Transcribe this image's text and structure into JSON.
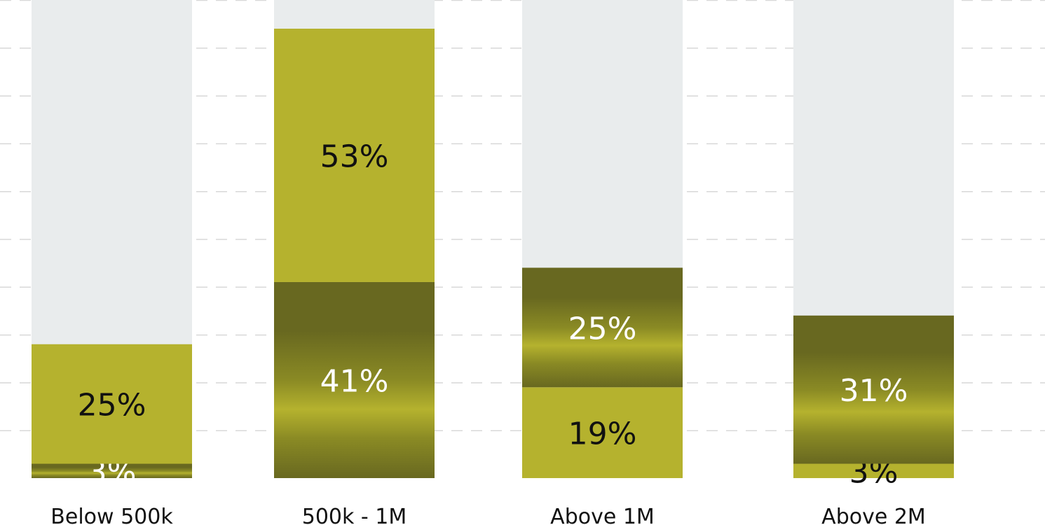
{
  "chart_data": {
    "type": "bar",
    "stacked": true,
    "categories": [
      "Below 500k",
      "500k - 1M",
      "Above 1M",
      "Above 2M"
    ],
    "ylim": [
      0,
      100
    ],
    "grid": true,
    "bars": [
      {
        "segments": [
          {
            "value": 3,
            "label": "3%",
            "style": "dark"
          },
          {
            "value": 25,
            "label": "25%",
            "style": "light"
          }
        ]
      },
      {
        "segments": [
          {
            "value": 41,
            "label": "41%",
            "style": "dark"
          },
          {
            "value": 53,
            "label": "53%",
            "style": "light"
          }
        ]
      },
      {
        "segments": [
          {
            "value": 19,
            "label": "19%",
            "style": "light"
          },
          {
            "value": 25,
            "label": "25%",
            "style": "dark"
          }
        ]
      },
      {
        "segments": [
          {
            "value": 3,
            "label": "3%",
            "style": "light"
          },
          {
            "value": 31,
            "label": "31%",
            "style": "dark"
          }
        ]
      }
    ],
    "colors": {
      "light": "#b5b22e",
      "dark": "#686820",
      "track": "#e9eced",
      "grid": "#d8d8d8",
      "dark_text": "#ffffff",
      "light_text": "#111111"
    }
  }
}
